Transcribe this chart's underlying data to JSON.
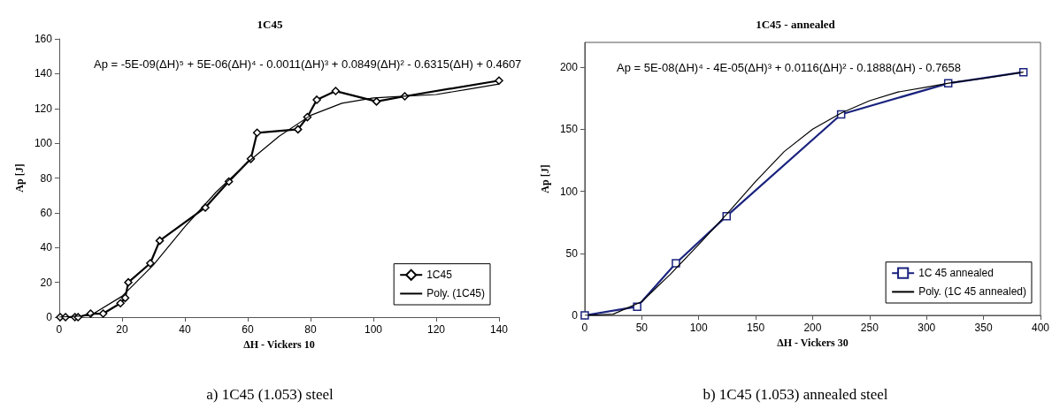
{
  "chart_data": [
    {
      "type": "line",
      "title": "1C45",
      "xlabel": "ΔH - Vickers 10",
      "ylabel": "Ap [J]",
      "xlim": [
        0,
        140
      ],
      "xticks": [
        0,
        20,
        40,
        60,
        80,
        100,
        120,
        140
      ],
      "ylim": [
        0,
        160
      ],
      "yticks": [
        0,
        20,
        40,
        60,
        80,
        100,
        120,
        140,
        160
      ],
      "grid": false,
      "legend": "bottom right",
      "annotations": [
        "Ap = -5E-09(ΔH)⁵ + 5E-06(ΔH)⁴ - 0.0011(ΔH)³ + 0.0849(ΔH)² - 0.6315(ΔH) + 0.4607",
        "a) 1C45 (1.053) steel"
      ],
      "series": [
        {
          "name": "1C45",
          "color": "#000000",
          "marker": "diamond",
          "x": [
            0.3,
            2,
            5,
            6,
            10,
            14,
            19.5,
            21,
            22,
            29,
            32,
            46.5,
            54,
            61,
            63,
            76,
            79,
            82,
            88,
            101,
            110,
            140
          ],
          "values": [
            0,
            0,
            0,
            0,
            2,
            2,
            8,
            11,
            20,
            31,
            44,
            63,
            78,
            91,
            106,
            108,
            115,
            125,
            130,
            124,
            127,
            136
          ]
        },
        {
          "name": "Poly. (1C45)",
          "color": "#000000",
          "marker": "none",
          "x": [
            0,
            10,
            20,
            30,
            40,
            50,
            60,
            70,
            80,
            90,
            100,
            110,
            120,
            130,
            140
          ],
          "values": [
            0,
            1,
            12,
            30,
            52,
            72,
            89,
            104,
            116,
            123,
            126,
            127,
            128,
            131,
            134
          ]
        }
      ]
    },
    {
      "type": "line",
      "title": "1C45 - annealed",
      "xlabel": "ΔH - Vickers 30",
      "ylabel": "Ap [J]",
      "xlim": [
        0,
        400
      ],
      "xticks": [
        0,
        50,
        100,
        150,
        200,
        250,
        300,
        350,
        400
      ],
      "ylim": [
        0,
        220
      ],
      "yticks": [
        0,
        50,
        100,
        150,
        200
      ],
      "grid": false,
      "legend": "bottom right",
      "annotations": [
        "Ap = 5E-08(ΔH)⁴ - 4E-05(ΔH)³ + 0.0116(ΔH)² - 0.1888(ΔH) - 0.7658",
        "b) 1C45 (1.053) annealed steel"
      ],
      "series": [
        {
          "name": "1C 45 annealed",
          "color": "#1a237e",
          "marker": "square",
          "x": [
            0,
            46,
            80,
            124.5,
            225,
            319,
            385
          ],
          "values": [
            0,
            7,
            42,
            80,
            162,
            187,
            196
          ]
        },
        {
          "name": "Poly. (1C 45 annealed)",
          "color": "#000000",
          "marker": "none",
          "x": [
            0,
            25,
            50,
            75,
            100,
            125,
            150,
            175,
            200,
            225,
            250,
            275,
            300,
            325,
            350,
            385
          ],
          "values": [
            0,
            1,
            11,
            33,
            57,
            82,
            108,
            132,
            150,
            163,
            173,
            180,
            184,
            188,
            191,
            196
          ]
        }
      ]
    }
  ]
}
